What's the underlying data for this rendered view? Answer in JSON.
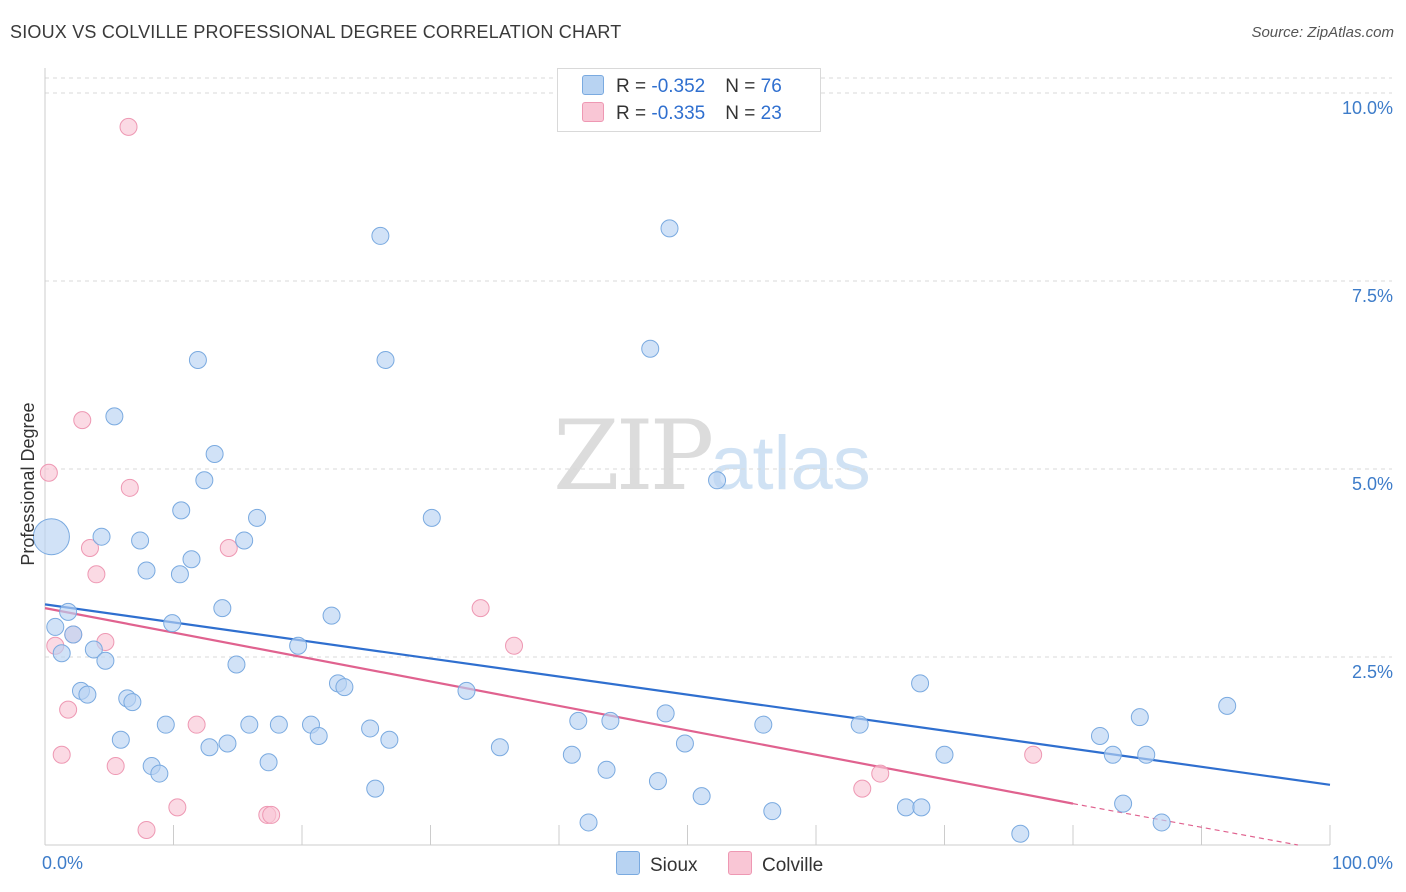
{
  "title": "SIOUX VS COLVILLE PROFESSIONAL DEGREE CORRELATION CHART",
  "source": "Source: ZipAtlas.com",
  "watermark": {
    "zip": "ZIP",
    "atlas": "atlas"
  },
  "colors": {
    "sioux_fill": "#b8d3f2",
    "sioux_stroke": "#7aaae0",
    "sioux_line": "#2f6fcf",
    "colville_fill": "#f9c6d5",
    "colville_stroke": "#ee98b3",
    "colville_line": "#e0628f",
    "grid": "#d9d9d9",
    "tick_text": "#3d7cc9"
  },
  "legend": {
    "rows": [
      {
        "r_label": "R = ",
        "r_value": "-0.352",
        "n_label": "N = ",
        "n_value": "76"
      },
      {
        "r_label": "R = ",
        "r_value": "-0.335",
        "n_label": "N = ",
        "n_value": "23"
      }
    ],
    "bottom": [
      {
        "label": "Sioux"
      },
      {
        "label": "Colville"
      }
    ]
  },
  "chart_data": {
    "type": "scatter",
    "title": "SIOUX VS COLVILLE PROFESSIONAL DEGREE CORRELATION CHART",
    "xlabel": "",
    "ylabel": "Professional Degree",
    "xlim": [
      0,
      100
    ],
    "ylim": [
      0,
      10.2
    ],
    "x_tick_labels": [
      "0.0%",
      "100.0%"
    ],
    "y_ticks": [
      {
        "value": 2.5,
        "label": "2.5%"
      },
      {
        "value": 5.0,
        "label": "5.0%"
      },
      {
        "value": 7.5,
        "label": "7.5%"
      },
      {
        "value": 10.0,
        "label": "10.0%"
      }
    ],
    "series": [
      {
        "name": "Sioux",
        "trend": {
          "x0": 0,
          "y0": 3.2,
          "x1": 100,
          "y1": 0.8
        },
        "points": [
          {
            "x": 0.5,
            "y": 4.1,
            "big": true
          },
          {
            "x": 0.8,
            "y": 2.9
          },
          {
            "x": 1.3,
            "y": 2.55
          },
          {
            "x": 1.8,
            "y": 3.1
          },
          {
            "x": 2.2,
            "y": 2.8
          },
          {
            "x": 2.8,
            "y": 2.05
          },
          {
            "x": 3.3,
            "y": 2.0
          },
          {
            "x": 3.8,
            "y": 2.6
          },
          {
            "x": 4.4,
            "y": 4.1
          },
          {
            "x": 4.7,
            "y": 2.45
          },
          {
            "x": 5.4,
            "y": 5.7
          },
          {
            "x": 5.9,
            "y": 1.4
          },
          {
            "x": 6.4,
            "y": 1.95
          },
          {
            "x": 6.8,
            "y": 1.9
          },
          {
            "x": 7.4,
            "y": 4.05
          },
          {
            "x": 7.9,
            "y": 3.65
          },
          {
            "x": 8.3,
            "y": 1.05
          },
          {
            "x": 8.9,
            "y": 0.95
          },
          {
            "x": 9.4,
            "y": 1.6
          },
          {
            "x": 9.9,
            "y": 2.95
          },
          {
            "x": 10.5,
            "y": 3.6
          },
          {
            "x": 10.6,
            "y": 4.45
          },
          {
            "x": 11.4,
            "y": 3.8
          },
          {
            "x": 11.9,
            "y": 6.45
          },
          {
            "x": 12.4,
            "y": 4.85
          },
          {
            "x": 12.8,
            "y": 1.3
          },
          {
            "x": 13.2,
            "y": 5.2
          },
          {
            "x": 13.8,
            "y": 3.15
          },
          {
            "x": 14.2,
            "y": 1.35
          },
          {
            "x": 14.9,
            "y": 2.4
          },
          {
            "x": 15.5,
            "y": 4.05
          },
          {
            "x": 15.9,
            "y": 1.6
          },
          {
            "x": 16.5,
            "y": 4.35
          },
          {
            "x": 17.4,
            "y": 1.1
          },
          {
            "x": 18.2,
            "y": 1.6
          },
          {
            "x": 19.7,
            "y": 2.65
          },
          {
            "x": 20.7,
            "y": 1.6
          },
          {
            "x": 21.3,
            "y": 1.45
          },
          {
            "x": 22.3,
            "y": 3.05
          },
          {
            "x": 22.8,
            "y": 2.15
          },
          {
            "x": 23.3,
            "y": 2.1
          },
          {
            "x": 25.3,
            "y": 1.55
          },
          {
            "x": 25.7,
            "y": 0.75
          },
          {
            "x": 26.1,
            "y": 8.1
          },
          {
            "x": 26.5,
            "y": 6.45
          },
          {
            "x": 26.8,
            "y": 1.4
          },
          {
            "x": 30.1,
            "y": 4.35
          },
          {
            "x": 32.8,
            "y": 2.05
          },
          {
            "x": 35.4,
            "y": 1.3
          },
          {
            "x": 41.0,
            "y": 1.2
          },
          {
            "x": 41.5,
            "y": 1.65
          },
          {
            "x": 42.3,
            "y": 0.3
          },
          {
            "x": 43.7,
            "y": 1.0
          },
          {
            "x": 44.0,
            "y": 1.65
          },
          {
            "x": 47.1,
            "y": 6.6
          },
          {
            "x": 47.7,
            "y": 0.85
          },
          {
            "x": 48.3,
            "y": 1.75
          },
          {
            "x": 48.6,
            "y": 8.2
          },
          {
            "x": 49.8,
            "y": 1.35
          },
          {
            "x": 51.1,
            "y": 0.65
          },
          {
            "x": 52.3,
            "y": 4.85
          },
          {
            "x": 55.9,
            "y": 1.6
          },
          {
            "x": 56.6,
            "y": 0.45
          },
          {
            "x": 63.4,
            "y": 1.6
          },
          {
            "x": 67.0,
            "y": 0.5
          },
          {
            "x": 68.1,
            "y": 2.15
          },
          {
            "x": 68.2,
            "y": 0.5
          },
          {
            "x": 70.0,
            "y": 1.2
          },
          {
            "x": 75.9,
            "y": 0.15
          },
          {
            "x": 82.1,
            "y": 1.45
          },
          {
            "x": 83.1,
            "y": 1.2
          },
          {
            "x": 83.9,
            "y": 0.55
          },
          {
            "x": 85.2,
            "y": 1.7
          },
          {
            "x": 85.7,
            "y": 1.2
          },
          {
            "x": 86.9,
            "y": 0.3
          },
          {
            "x": 92.0,
            "y": 1.85
          }
        ]
      },
      {
        "name": "Colville",
        "trend": {
          "x0": 0,
          "y0": 3.15,
          "x1": 80,
          "y1": 0.55
        },
        "trend_dashed": {
          "x0": 80,
          "y0": 0.55,
          "x1": 97.5,
          "y1": 0.0
        },
        "points": [
          {
            "x": 0.3,
            "y": 4.95
          },
          {
            "x": 0.8,
            "y": 2.65
          },
          {
            "x": 1.3,
            "y": 1.2
          },
          {
            "x": 1.8,
            "y": 1.8
          },
          {
            "x": 2.2,
            "y": 2.8
          },
          {
            "x": 2.9,
            "y": 5.65
          },
          {
            "x": 3.5,
            "y": 3.95
          },
          {
            "x": 4.0,
            "y": 3.6
          },
          {
            "x": 4.7,
            "y": 2.7
          },
          {
            "x": 5.5,
            "y": 1.05
          },
          {
            "x": 6.5,
            "y": 9.55
          },
          {
            "x": 6.6,
            "y": 4.75
          },
          {
            "x": 7.9,
            "y": 0.2
          },
          {
            "x": 10.3,
            "y": 0.5
          },
          {
            "x": 11.8,
            "y": 1.6
          },
          {
            "x": 14.3,
            "y": 3.95
          },
          {
            "x": 17.3,
            "y": 0.4
          },
          {
            "x": 17.6,
            "y": 0.4
          },
          {
            "x": 33.9,
            "y": 3.15
          },
          {
            "x": 36.5,
            "y": 2.65
          },
          {
            "x": 63.6,
            "y": 0.75
          },
          {
            "x": 65.0,
            "y": 0.95
          },
          {
            "x": 76.9,
            "y": 1.2
          }
        ]
      }
    ]
  }
}
